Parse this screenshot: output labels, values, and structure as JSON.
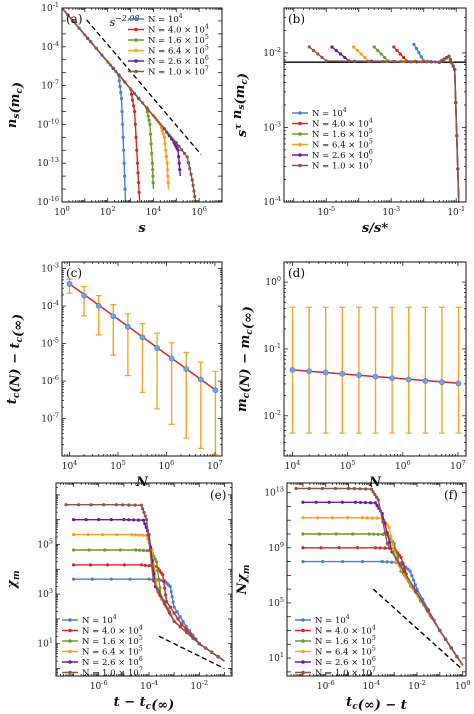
{
  "legend_entries": [
    "N = 10^4",
    "N = 4.0 × 10^4",
    "N = 1.6 × 10^5",
    "N = 6.4 × 10^5",
    "N = 2.6 × 10^6",
    "N = 1.0 × 10^7"
  ],
  "colors": [
    "#4a7fd6",
    "#d62728",
    "#6f9a2e",
    "#ff9f1c",
    "#6a1b9a",
    "#8c564b"
  ],
  "errorbar_color": "#f5a623",
  "fit_color": "#d62728",
  "chart_data": [
    {
      "panel": "(a)",
      "type": "line",
      "xscale": "log",
      "yscale": "log",
      "xlabel": "s",
      "ylabel": "n_s(m_c)",
      "xlim": [
        1,
        10000000
      ],
      "ylim": [
        1e-16,
        0.1
      ],
      "xticks": [
        "10^0",
        "10^2",
        "10^4",
        "10^6"
      ],
      "yticks": [
        "10^-16",
        "10^-13",
        "10^-10",
        "10^-7",
        "10^-4",
        "10^-1"
      ],
      "annotation": "s^-2.08",
      "slope": -2.08,
      "series": [
        {
          "name": "N = 10^4",
          "x": [
            1,
            10,
            100,
            300,
            400,
            500,
            600
          ],
          "y": [
            0.1,
            0.00083,
            6.9e-06,
            6.9e-07,
            1e-08,
            1e-12,
            1e-16
          ]
        },
        {
          "name": "N = 4.0 × 10^4",
          "x": [
            1,
            100,
            1000,
            1500,
            2000,
            2500
          ],
          "y": [
            0.1,
            6.9e-06,
            5.7e-08,
            1e-09,
            1e-13,
            1e-16
          ]
        },
        {
          "name": "N = 1.6 × 10^5",
          "x": [
            1,
            1000,
            5000,
            7000,
            9000,
            10000
          ],
          "y": [
            0.1,
            5.7e-08,
            2e-09,
            1e-10,
            1e-13,
            1e-15
          ]
        },
        {
          "name": "N = 6.4 × 10^5",
          "x": [
            1,
            10000,
            20000,
            30000,
            40000,
            45000
          ],
          "y": [
            0.1,
            4.8e-10,
            1e-10,
            1e-11,
            1e-13,
            1e-15
          ]
        },
        {
          "name": "N = 2.6 × 10^6",
          "x": [
            1,
            30000,
            80000,
            120000,
            150000
          ],
          "y": [
            0.1,
            4.6e-11,
            4e-12,
            1e-12,
            1e-14
          ]
        },
        {
          "name": "N = 1.0 × 10^7",
          "x": [
            1,
            100000,
            300000,
            500000,
            700000
          ],
          "y": [
            0.1,
            3.9e-12,
            3e-13,
            5e-15,
            1e-16
          ]
        }
      ]
    },
    {
      "panel": "(b)",
      "type": "line",
      "xscale": "log",
      "yscale": "log",
      "xlabel": "s/s*",
      "ylabel": "s^τ n_s(m_c)",
      "xlim": [
        5e-07,
        0.2
      ],
      "ylim": [
        0.0001,
        0.04
      ],
      "xticks": [
        "10^-5",
        "10^-3",
        "10^-1"
      ],
      "yticks": [
        "10^-4",
        "10^-3",
        "10^-2"
      ],
      "hline": 0.0075,
      "series": [
        {
          "name": "N = 10^4",
          "x": [
            0.005,
            0.01,
            0.03,
            0.06,
            0.09,
            0.12
          ],
          "y": [
            0.013,
            0.0078,
            0.0075,
            0.009,
            0.006,
            0.0001
          ]
        },
        {
          "name": "N = 4.0 × 10^4",
          "x": [
            0.0012,
            0.003,
            0.03,
            0.06,
            0.09,
            0.12
          ],
          "y": [
            0.012,
            0.0078,
            0.0075,
            0.009,
            0.006,
            0.0001
          ]
        },
        {
          "name": "N = 1.6 × 10^5",
          "x": [
            0.0003,
            0.0008,
            0.03,
            0.06,
            0.09,
            0.12
          ],
          "y": [
            0.012,
            0.0078,
            0.0075,
            0.009,
            0.006,
            0.0001
          ]
        },
        {
          "name": "N = 6.4 × 10^5",
          "x": [
            7e-05,
            0.0002,
            0.03,
            0.06,
            0.09,
            0.12
          ],
          "y": [
            0.012,
            0.0078,
            0.0075,
            0.009,
            0.006,
            0.0001
          ]
        },
        {
          "name": "N = 2.6 × 10^6",
          "x": [
            1.5e-05,
            5e-05,
            0.03,
            0.06,
            0.09,
            0.12
          ],
          "y": [
            0.012,
            0.0078,
            0.0075,
            0.009,
            0.006,
            0.0001
          ]
        },
        {
          "name": "N = 1.0 × 10^7",
          "x": [
            3e-06,
            1e-05,
            0.03,
            0.06,
            0.09,
            0.12
          ],
          "y": [
            0.012,
            0.0078,
            0.0075,
            0.009,
            0.006,
            0.0001
          ]
        }
      ]
    },
    {
      "panel": "(c)",
      "type": "scatter",
      "xscale": "log",
      "yscale": "log",
      "xlabel": "N",
      "ylabel": "t_c(N) − t_c(∞)",
      "xlim": [
        7000,
        14000000
      ],
      "ylim": [
        1e-08,
        0.0015
      ],
      "xticks": [
        "10^4",
        "10^5",
        "10^6",
        "10^7"
      ],
      "yticks": [
        "10^-7",
        "10^-6",
        "10^-5",
        "10^-4",
        "10^-3"
      ],
      "x": [
        10000,
        20000,
        40000,
        80000,
        160000,
        320000,
        640000,
        1280000,
        2560000,
        5120000,
        10240000
      ],
      "y": [
        0.00039,
        0.00019,
        0.000102,
        5.35e-05,
        2.8e-05,
        1.46e-05,
        7.6e-06,
        4e-06,
        2.1e-06,
        1.1e-06,
        5.7e-07
      ],
      "err_low": [
        0.00022,
        5.5e-05,
        1.7e-05,
        4.9e-06,
        1.4e-06,
        5e-07,
        1.8e-07,
        7e-08,
        3e-08,
        1.6e-08,
        1.1e-08
      ],
      "err_high": [
        0.00052,
        0.00033,
        0.00019,
        0.00011,
        6.2e-05,
        3.4e-05,
        1.9e-05,
        1.05e-05,
        5.8e-06,
        3.2e-06,
        1.8e-06
      ],
      "fit_slope": -0.94
    },
    {
      "panel": "(d)",
      "type": "scatter",
      "xscale": "log",
      "yscale": "log",
      "xlabel": "N",
      "ylabel": "m_c(N) − m_c(∞)",
      "xlim": [
        7000,
        14000000
      ],
      "ylim": [
        0.0025,
        2
      ],
      "xticks": [
        "10^4",
        "10^5",
        "10^6",
        "10^7"
      ],
      "yticks": [
        "10^-2",
        "10^-1",
        "10^0"
      ],
      "x": [
        10000,
        20000,
        40000,
        80000,
        160000,
        320000,
        640000,
        1280000,
        2560000,
        5120000,
        10240000
      ],
      "y": [
        0.0485,
        0.0465,
        0.0445,
        0.0425,
        0.0405,
        0.0385,
        0.0365,
        0.0348,
        0.0332,
        0.0318,
        0.0305
      ],
      "err_low": [
        0.0055,
        0.0055,
        0.0055,
        0.0055,
        0.0055,
        0.0055,
        0.0055,
        0.0055,
        0.0055,
        0.0055,
        0.0055
      ],
      "err_high": [
        0.42,
        0.42,
        0.42,
        0.42,
        0.42,
        0.42,
        0.42,
        0.42,
        0.42,
        0.42,
        0.42
      ],
      "fit_slope": -0.066
    },
    {
      "panel": "(e)",
      "type": "line",
      "xscale": "log",
      "yscale": "log",
      "xlabel": "t − t_c(∞)",
      "ylabel": "χ_m",
      "xlim": [
        2e-08,
        0.2
      ],
      "ylim": [
        0.5,
        30000000.0
      ],
      "xticks": [
        "10^-6",
        "10^-4",
        "10^-2"
      ],
      "yticks": [
        "10^1",
        "10^3",
        "10^5"
      ],
      "series": [
        {
          "name": "N = 10^4",
          "x": [
            1e-07,
            0.0001,
            0.0004,
            0.0007,
            0.001,
            0.003,
            0.01,
            0.1
          ],
          "y": [
            4000,
            4000,
            3500,
            2000,
            300,
            50,
            10,
            2
          ]
        },
        {
          "name": "N = 4.0 × 10^4",
          "x": [
            1e-07,
            5e-05,
            0.0002,
            0.00035,
            0.0005,
            0.002,
            0.01,
            0.1
          ],
          "y": [
            15000,
            15000,
            13000,
            6000,
            500,
            60,
            10,
            2
          ]
        },
        {
          "name": "N = 1.6 × 10^5",
          "x": [
            1e-07,
            3e-05,
            0.00012,
            0.0002,
            0.0003,
            0.001,
            0.01,
            0.1
          ],
          "y": [
            60000,
            60000,
            55000,
            20000,
            800,
            80,
            10,
            2
          ]
        },
        {
          "name": "N = 6.4 × 10^5",
          "x": [
            1e-07,
            2e-05,
            8e-05,
            0.00013,
            0.00022,
            0.001,
            0.01,
            0.1
          ],
          "y": [
            250000,
            250000,
            230000,
            60000,
            1200,
            80,
            10,
            2
          ]
        },
        {
          "name": "N = 2.6 × 10^6",
          "x": [
            1e-07,
            1e-05,
            6e-05,
            0.0001,
            0.00018,
            0.001,
            0.01,
            0.1
          ],
          "y": [
            1000000,
            1000000,
            950000,
            250000,
            2000,
            80,
            10,
            2
          ]
        },
        {
          "name": "N = 1.0 × 10^7",
          "x": [
            5e-08,
            5e-06,
            5e-05,
            8e-05,
            0.00015,
            0.001,
            0.01,
            0.1
          ],
          "y": [
            4000000,
            4000000,
            3800000,
            1000000,
            3500,
            80,
            10,
            2
          ]
        }
      ],
      "guide": {
        "x": [
          0.00025,
          0.1
        ],
        "y": [
          20,
          1
        ]
      }
    },
    {
      "panel": "(f)",
      "type": "line",
      "xscale": "log",
      "yscale": "log",
      "xlabel": "t_c(∞) − t",
      "ylabel": "Nχ_m",
      "xlim": [
        2e-08,
        1.4
      ],
      "ylim": [
        0.5,
        50000000000000.0
      ],
      "xticks": [
        "10^-6",
        "10^-4",
        "10^-2",
        "10^0"
      ],
      "yticks": [
        "10^1",
        "10^5",
        "10^9",
        "10^13"
      ],
      "series": [
        {
          "name": "N = 10^4",
          "x": [
            1e-07,
            0.0003,
            0.002,
            0.005,
            0.01,
            0.1,
            1
          ],
          "y": [
            100000000.0,
            100000000.0,
            80000000.0,
            20000000.0,
            1000000.0,
            1000,
            3
          ]
        },
        {
          "name": "N = 4.0 × 10^4",
          "x": [
            1e-07,
            0.00015,
            0.001,
            0.002,
            0.004,
            0.1,
            1
          ],
          "y": [
            1000000000.0,
            1000000000.0,
            900000000.0,
            200000000.0,
            5000000.0,
            1000,
            3
          ]
        },
        {
          "name": "N = 1.6 × 10^5",
          "x": [
            1e-07,
            8e-05,
            0.0005,
            0.001,
            0.002,
            0.1,
            1
          ],
          "y": [
            10000000000.0,
            10000000000.0,
            9000000000.0,
            2000000000.0,
            20000000.0,
            1000,
            3
          ]
        },
        {
          "name": "N = 6.4 × 10^5",
          "x": [
            1e-07,
            4e-05,
            0.0003,
            0.0006,
            0.0012,
            0.1,
            1
          ],
          "y": [
            150000000000.0,
            150000000000.0,
            140000000000.0,
            30000000000.0,
            100000000.0,
            1000,
            3
          ]
        },
        {
          "name": "N = 2.6 × 10^6",
          "x": [
            1e-07,
            2e-05,
            0.00015,
            0.0003,
            0.0008,
            0.1,
            1
          ],
          "y": [
            2000000000000.0,
            2000000000000.0,
            1800000000000.0,
            300000000000.0,
            500000000.0,
            1000,
            3
          ]
        },
        {
          "name": "N = 1.0 × 10^7",
          "x": [
            5e-08,
            1e-05,
            0.0001,
            0.0002,
            0.0005,
            0.1,
            1
          ],
          "y": [
            20000000000000.0,
            20000000000000.0,
            18000000000000.0,
            3000000000000.0,
            2000000000.0,
            1000,
            3
          ]
        }
      ],
      "guide": {
        "x": [
          0.00012,
          0.8
        ],
        "y": [
          1000000,
          2
        ]
      }
    }
  ]
}
